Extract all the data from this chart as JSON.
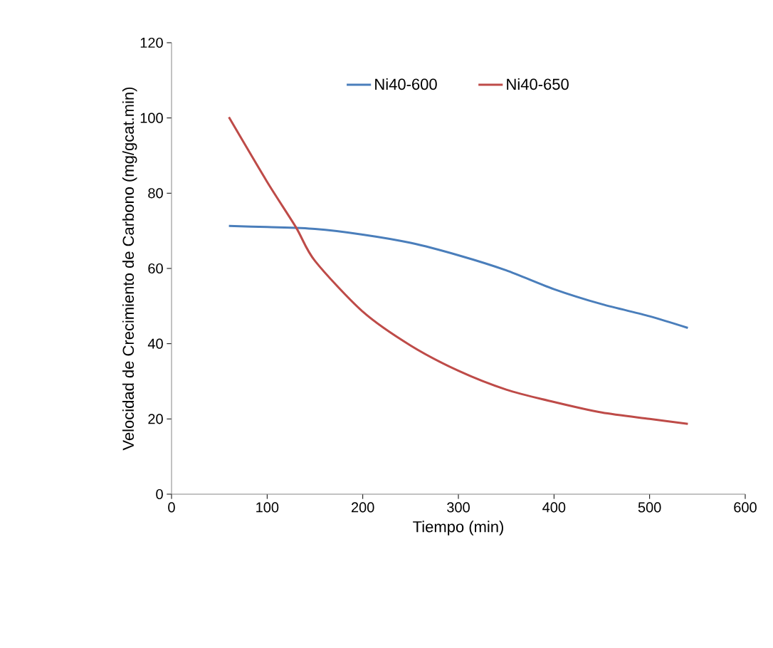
{
  "chart_data": {
    "type": "line",
    "xlabel": "Tiempo (min)",
    "ylabel": "Velocidad de Crecimiento de Carbono (mg/gcat.min)",
    "x": [
      60,
      100,
      150,
      200,
      250,
      300,
      350,
      400,
      450,
      500,
      540
    ],
    "series": [
      {
        "name": "Ni40-600",
        "color": "#4a7ebb",
        "values": [
          71.3,
          71,
          70.5,
          69,
          66.8,
          63.5,
          59.5,
          54.5,
          50.5,
          47.3,
          44.2
        ]
      },
      {
        "name": "Ni40-650",
        "color": "#be4b48",
        "x": [
          60,
          100,
          130,
          150,
          200,
          250,
          300,
          350,
          400,
          450,
          500,
          540
        ],
        "values": [
          100.2,
          83,
          71,
          62,
          48.5,
          39.5,
          32.8,
          27.8,
          24.5,
          21.7,
          20,
          18.7
        ]
      }
    ],
    "xlim": [
      0,
      600
    ],
    "ylim": [
      0,
      120
    ],
    "xticks": [
      0,
      100,
      200,
      300,
      400,
      500,
      600
    ],
    "yticks": [
      0,
      20,
      40,
      60,
      80,
      100,
      120
    ],
    "legend": "top",
    "marker": "none",
    "line_style": "solid"
  }
}
